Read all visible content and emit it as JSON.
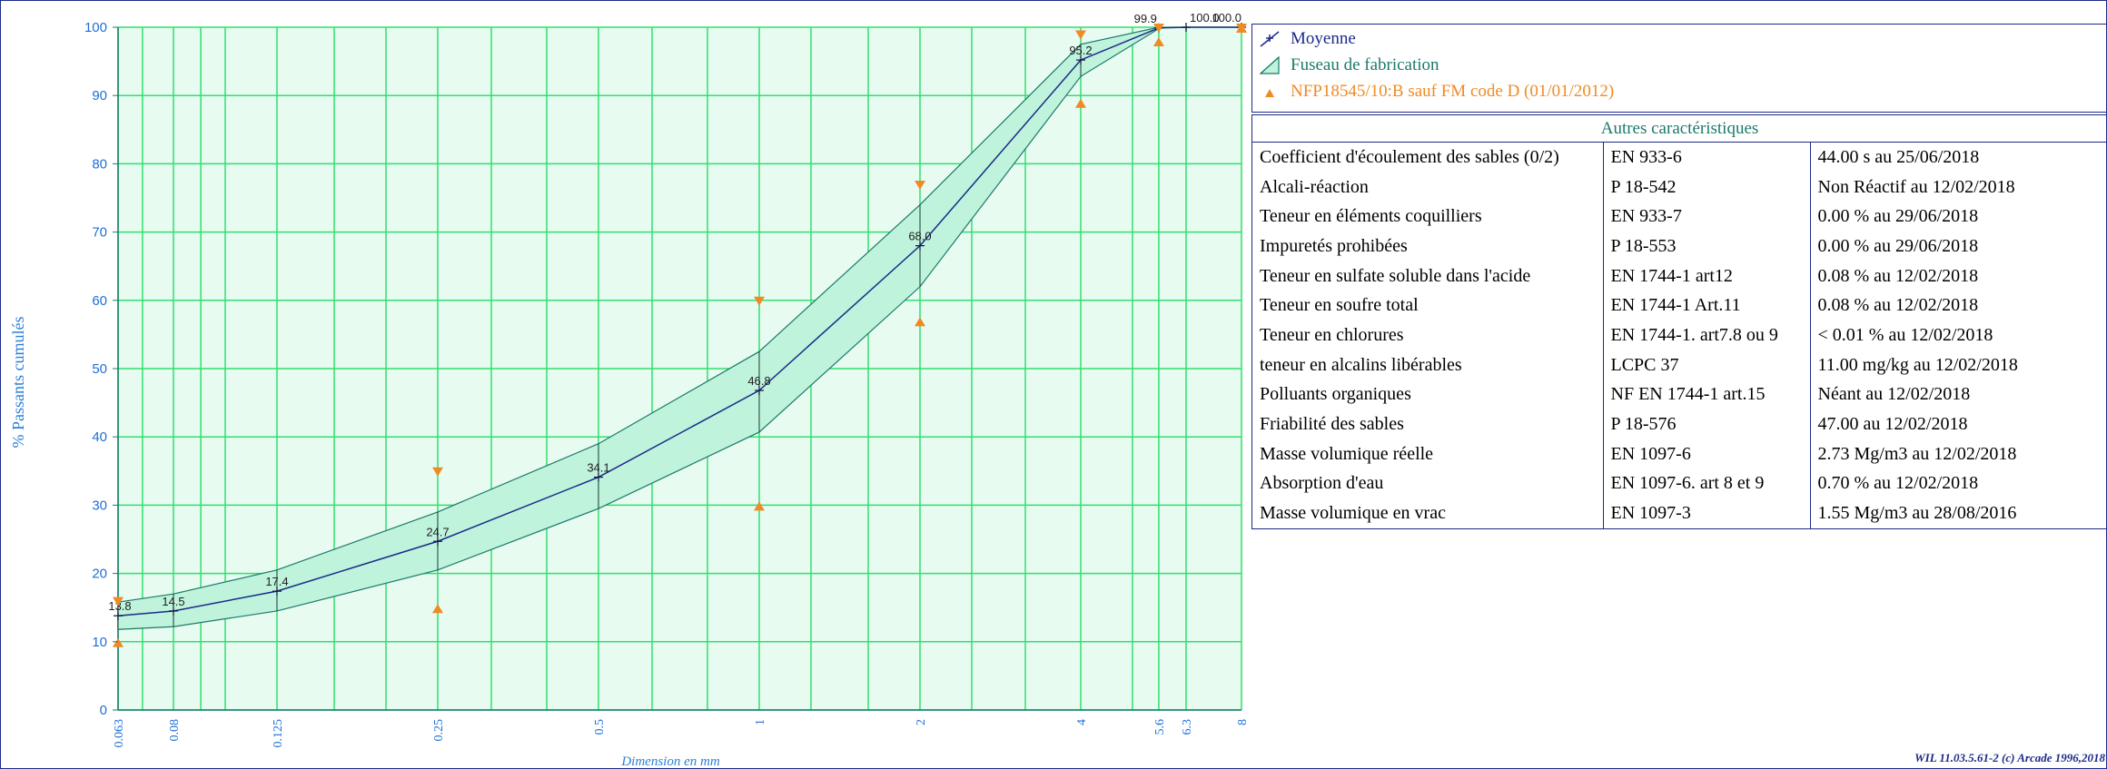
{
  "chart_data": {
    "type": "line",
    "xlabel": "Dimension en mm",
    "ylabel": "% Passants cumulés",
    "x_scale": "log",
    "xlim": [
      0.063,
      8
    ],
    "ylim": [
      0,
      100
    ],
    "y_ticks": [
      "0",
      "10",
      "20",
      "30",
      "40",
      "50",
      "60",
      "70",
      "80",
      "90",
      "100"
    ],
    "x_ticks": [
      "0.063",
      "0.08",
      "0.125",
      "0.25",
      "0.5",
      "1",
      "2",
      "4",
      "5.6",
      "6.3",
      "8"
    ],
    "grid": true,
    "series": [
      {
        "name": "Moyenne",
        "x": [
          0.063,
          0.08,
          0.125,
          0.25,
          0.5,
          1,
          2,
          4,
          5.6,
          6.3,
          8
        ],
        "y": [
          13.8,
          14.5,
          17.4,
          24.7,
          34.1,
          46.8,
          68.0,
          95.2,
          99.9,
          100.0,
          100.0
        ],
        "labels": [
          "13.8",
          "14.5",
          "17.4",
          "24.7",
          "34.1",
          "46.8",
          "68.0",
          "95.2",
          "99.9",
          "100.0",
          "100.0"
        ]
      },
      {
        "name": "Fuseau de fabrication",
        "x": [
          0.063,
          0.08,
          0.125,
          0.25,
          0.5,
          1,
          2,
          4,
          5.6
        ],
        "upper": [
          15.8,
          17,
          20.5,
          29,
          39,
          52.5,
          74,
          97.5,
          100
        ],
        "lower": [
          11.8,
          12.2,
          14.5,
          20.5,
          29.5,
          40.7,
          62,
          92.8,
          99.8
        ]
      },
      {
        "name": "NFP18545/10:B sauf FM code D (01/01/2012)",
        "x": [
          0.063,
          0.25,
          1,
          2,
          4,
          5.6,
          8
        ],
        "upper": [
          16,
          35,
          60,
          77,
          99,
          100,
          100
        ],
        "lower": [
          10,
          15,
          30,
          57,
          89,
          98,
          100
        ]
      }
    ]
  },
  "legend": [
    {
      "label": "Moyenne",
      "color": "#1c2a88"
    },
    {
      "label": "Fuseau de fabrication",
      "color": "#1a7a6a"
    },
    {
      "label": "NFP18545/10:B sauf FM code D (01/01/2012)",
      "color": "#f08a24"
    }
  ],
  "other": {
    "title": "Autres caractéristiques",
    "rows": [
      [
        "Coefficient d'écoulement des sables (0/2)",
        "EN 933-6",
        "44.00 s  au 25/06/2018"
      ],
      [
        "Alcali-réaction",
        "P 18-542",
        "Non Réactif  au 12/02/2018"
      ],
      [
        "Teneur en éléments coquilliers",
        "EN 933-7",
        "0.00 %  au 29/06/2018"
      ],
      [
        "Impuretés prohibées",
        "P 18-553",
        "0.00 %  au 29/06/2018"
      ],
      [
        "Teneur en sulfate soluble dans l'acide",
        "EN 1744-1 art12",
        "0.08 %  au 12/02/2018"
      ],
      [
        "Teneur en soufre total",
        "EN 1744-1 Art.11",
        "0.08 %  au 12/02/2018"
      ],
      [
        "Teneur en chlorures",
        "EN 1744-1. art7.8 ou 9",
        "< 0.01 %  au 12/02/2018"
      ],
      [
        "teneur en alcalins libérables",
        "LCPC 37",
        "11.00 mg/kg  au 12/02/2018"
      ],
      [
        "Polluants organiques",
        "NF EN 1744-1 art.15",
        "Néant  au 12/02/2018"
      ],
      [
        "Friabilité des sables",
        "P 18-576",
        "47.00   au 12/02/2018"
      ],
      [
        "Masse volumique réelle",
        "EN 1097-6",
        "2.73 Mg/m3  au 12/02/2018"
      ],
      [
        "Absorption d'eau",
        "EN 1097-6. art 8 et 9",
        "0.70 %  au 12/02/2018"
      ],
      [
        "Masse volumique en vrac",
        "EN 1097-3",
        "1.55 Mg/m3  au 28/08/2016"
      ]
    ]
  },
  "footer": "WIL 11.03.5.61-2 (c) Arcade 1996,2018",
  "colors": {
    "plot_bg": "#e8fbf1",
    "grid": "#2ee06e",
    "band_fill": "#bff3dc",
    "band_line": "#1a7a6a",
    "mean_line": "#1c2a88",
    "limit_marker": "#f08a24",
    "tick_text": "#1f6fd6"
  }
}
